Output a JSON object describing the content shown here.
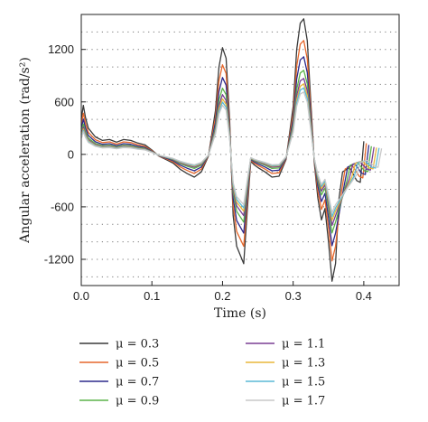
{
  "chart_data": {
    "type": "line",
    "xlabel": "Time (s)",
    "ylabel": "Angular acceleration (rad/s²)",
    "xlim": [
      0.0,
      0.45
    ],
    "ylim": [
      -1500,
      1600
    ],
    "x_ticks": [
      0.0,
      0.1,
      0.2,
      0.3,
      0.4
    ],
    "x_tick_labels": [
      "0.0",
      "0.1",
      "0.2",
      "0.3",
      "0.4"
    ],
    "y_ticks": [
      -1200,
      -600,
      0,
      600,
      1200
    ],
    "y_tick_labels": [
      "-1200",
      "-600",
      "0",
      "600",
      "1200"
    ],
    "grid": "horizontal dotted",
    "legend_placement": "below",
    "legend_var": "μ",
    "series": [
      {
        "name": "μ = 0.3",
        "color": "#3a3a3a",
        "scale": 1.0
      },
      {
        "name": "μ = 0.5",
        "color": "#e6672b",
        "scale": 0.84
      },
      {
        "name": "μ = 0.7",
        "color": "#2d2a8c",
        "scale": 0.72
      },
      {
        "name": "μ = 0.9",
        "color": "#5cb34a",
        "scale": 0.62
      },
      {
        "name": "μ = 1.1",
        "color": "#7a3f93",
        "scale": 0.56
      },
      {
        "name": "μ = 1.3",
        "color": "#e8b73a",
        "scale": 0.52
      },
      {
        "name": "μ = 1.5",
        "color": "#5ab9d6",
        "scale": 0.49
      },
      {
        "name": "μ = 1.7",
        "color": "#c8c8c8",
        "scale": 0.46
      }
    ],
    "base_curve": {
      "x": [
        0.0,
        0.003,
        0.006,
        0.01,
        0.02,
        0.03,
        0.04,
        0.05,
        0.06,
        0.07,
        0.08,
        0.09,
        0.1,
        0.11,
        0.12,
        0.13,
        0.14,
        0.15,
        0.16,
        0.17,
        0.18,
        0.19,
        0.195,
        0.2,
        0.205,
        0.21,
        0.215,
        0.22,
        0.225,
        0.23,
        0.235,
        0.24,
        0.245,
        0.25,
        0.26,
        0.27,
        0.28,
        0.29,
        0.3,
        0.305,
        0.31,
        0.315,
        0.32,
        0.325,
        0.33,
        0.335,
        0.34,
        0.345,
        0.35,
        0.355,
        0.36,
        0.365,
        0.37,
        0.38,
        0.39,
        0.395,
        0.4
      ],
      "y": [
        400,
        560,
        420,
        300,
        200,
        160,
        170,
        140,
        170,
        160,
        130,
        110,
        50,
        -20,
        -60,
        -100,
        -170,
        -220,
        -260,
        -200,
        -20,
        500,
        1000,
        1220,
        1100,
        400,
        -700,
        -1050,
        -1150,
        -1250,
        -650,
        -80,
        -120,
        -150,
        -200,
        -260,
        -250,
        -60,
        550,
        1200,
        1500,
        1550,
        1300,
        600,
        -100,
        -500,
        -750,
        -620,
        -1000,
        -1450,
        -1250,
        -500,
        -200,
        -150,
        -300,
        -320,
        150
      ]
    }
  }
}
